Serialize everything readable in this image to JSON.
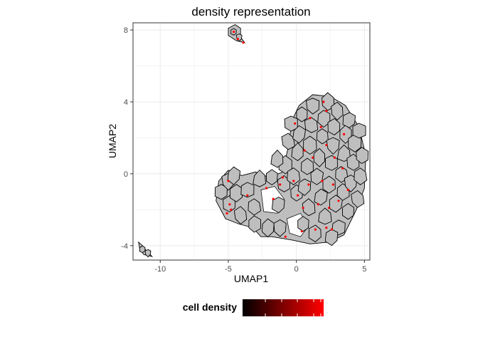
{
  "chart_data": {
    "type": "scatter",
    "title": "density representation",
    "xlabel": "UMAP1",
    "ylabel": "UMAP2",
    "xlim": [
      -12,
      5.4
    ],
    "ylim": [
      -4.8,
      8.4
    ],
    "x_ticks": [
      -10,
      -5,
      0,
      5
    ],
    "y_ticks": [
      -4,
      0,
      4,
      8
    ],
    "x_tick_labels": [
      "-10",
      "-5",
      "0",
      "5"
    ],
    "y_tick_labels": [
      "-4",
      "0",
      "4",
      "8"
    ],
    "grid": true,
    "legend": {
      "title": "cell density",
      "position": "bottom",
      "type": "colorbar",
      "low_color": "#000000",
      "high_color": "#ff0000"
    },
    "colors": {
      "tile_fill": "#bebebe",
      "tile_outline": "#000000",
      "dense_point": "#ff0000",
      "grid": "#ebebeb",
      "panel_border": "#333333"
    },
    "clusters": [
      {
        "name": "main",
        "polygon": [
          [
            -5.7,
            -0.4
          ],
          [
            -5,
            0.2
          ],
          [
            -4,
            -0.1
          ],
          [
            -3,
            0.1
          ],
          [
            -2,
            -0.2
          ],
          [
            -1,
            0.1
          ],
          [
            -0.6,
            1.5
          ],
          [
            -0.3,
            3
          ],
          [
            0.2,
            3.8
          ],
          [
            1.2,
            4.4
          ],
          [
            2.5,
            4.3
          ],
          [
            3.6,
            3.8
          ],
          [
            4.6,
            2.6
          ],
          [
            5.1,
            1
          ],
          [
            5,
            -0.8
          ],
          [
            4.4,
            -2
          ],
          [
            3.5,
            -3.4
          ],
          [
            2.4,
            -3.8
          ],
          [
            1,
            -3.9
          ],
          [
            -0.2,
            -3.7
          ],
          [
            -1,
            -3.6
          ],
          [
            -1.8,
            -3.5
          ],
          [
            -2.6,
            -3.5
          ],
          [
            -3.2,
            -3
          ],
          [
            -4.2,
            -2.8
          ],
          [
            -5.2,
            -2.5
          ],
          [
            -5.9,
            -1.5
          ]
        ]
      },
      {
        "name": "top-islet",
        "polygon": [
          [
            -5,
            8.1
          ],
          [
            -4.5,
            8.3
          ],
          [
            -4.1,
            8.1
          ],
          [
            -4.1,
            7.6
          ],
          [
            -3.8,
            7.3
          ],
          [
            -4.4,
            7.4
          ],
          [
            -5,
            7.7
          ]
        ]
      },
      {
        "name": "bottom-left-islet",
        "polygon": [
          [
            -11.6,
            -3.8
          ],
          [
            -11.3,
            -4
          ],
          [
            -11,
            -4.3
          ],
          [
            -10.6,
            -4.6
          ],
          [
            -11.2,
            -4.5
          ],
          [
            -11.5,
            -4.2
          ]
        ]
      }
    ],
    "holes": [
      {
        "polygon": [
          [
            -2.6,
            -0.9
          ],
          [
            -1.6,
            -0.7
          ],
          [
            -0.9,
            -1.4
          ],
          [
            -1.4,
            -2.2
          ],
          [
            -2.4,
            -2.1
          ]
        ]
      },
      {
        "polygon": [
          [
            -0.7,
            -2.5
          ],
          [
            0.3,
            -2.2
          ],
          [
            0.9,
            -2.9
          ],
          [
            0.3,
            -3.5
          ],
          [
            -0.5,
            -3.3
          ]
        ]
      }
    ],
    "tile_centers": {
      "main": [
        [
          -5.5,
          -1
        ],
        [
          -5,
          -0.4
        ],
        [
          -4.9,
          -1.7
        ],
        [
          -4.4,
          -1.1
        ],
        [
          -4.1,
          -2.3
        ],
        [
          -3.6,
          -0.9
        ],
        [
          -3.1,
          -1.8
        ],
        [
          -3.1,
          -2.8
        ],
        [
          -2.7,
          -0.3
        ],
        [
          -2.1,
          -3
        ],
        [
          -1.8,
          -0.2
        ],
        [
          -1.3,
          -1.7
        ],
        [
          -1.2,
          -3
        ],
        [
          -0.9,
          -0.6
        ],
        [
          -0.8,
          0.5
        ],
        [
          -0.6,
          1.8
        ],
        [
          -0.4,
          2.8
        ],
        [
          -0.2,
          -0.1
        ],
        [
          0,
          -1.1
        ],
        [
          0.1,
          1.2
        ],
        [
          0.2,
          2.2
        ],
        [
          0.4,
          3.3
        ],
        [
          0.6,
          -0.7
        ],
        [
          0.8,
          0.4
        ],
        [
          0.9,
          -1.9
        ],
        [
          1,
          1.6
        ],
        [
          1.1,
          2.7
        ],
        [
          1.2,
          3.8
        ],
        [
          1.4,
          -3.3
        ],
        [
          1.5,
          -0.2
        ],
        [
          1.7,
          0.9
        ],
        [
          1.8,
          -1.3
        ],
        [
          1.9,
          2.1
        ],
        [
          2,
          3.1
        ],
        [
          2.1,
          -2.4
        ],
        [
          2.3,
          4
        ],
        [
          2.4,
          -0.6
        ],
        [
          2.6,
          0.6
        ],
        [
          2.7,
          1.6
        ],
        [
          2.8,
          2.6
        ],
        [
          2.9,
          -1.7
        ],
        [
          3,
          3.5
        ],
        [
          3.1,
          -3
        ],
        [
          3.3,
          0
        ],
        [
          3.4,
          -1
        ],
        [
          3.5,
          1.1
        ],
        [
          3.6,
          2.2
        ],
        [
          3.8,
          -2.1
        ],
        [
          3.9,
          3
        ],
        [
          4,
          -0.5
        ],
        [
          4.2,
          0.6
        ],
        [
          4.3,
          1.7
        ],
        [
          4.5,
          -1.4
        ],
        [
          4.6,
          2.4
        ],
        [
          4.7,
          -0.1
        ],
        [
          4.8,
          1
        ],
        [
          -1.4,
          0.8
        ],
        [
          -4.6,
          -0.1
        ],
        [
          0.5,
          -2.8
        ],
        [
          2.6,
          -3.5
        ]
      ],
      "top-islet": [
        [
          -4.6,
          7.9
        ],
        [
          -4.2,
          7.6
        ]
      ],
      "bottom-left-islet": [
        [
          -11.3,
          -4.2
        ],
        [
          -10.9,
          -4.4
        ]
      ]
    },
    "dense_points": [
      [
        -5,
        -0.4
      ],
      [
        -4.8,
        -2
      ],
      [
        -5.1,
        -2.2
      ],
      [
        -4.9,
        -1.7
      ],
      [
        -3.6,
        -1.2
      ],
      [
        -2.2,
        -0.8
      ],
      [
        -1.7,
        -1.4
      ],
      [
        -1,
        -0.2
      ],
      [
        -0.8,
        -3.5
      ],
      [
        -0.2,
        -0.4
      ],
      [
        0.4,
        -3.2
      ],
      [
        0.5,
        -1.9
      ],
      [
        0.9,
        -0.6
      ],
      [
        1.4,
        -3.1
      ],
      [
        1.6,
        -1.7
      ],
      [
        1.9,
        -0.4
      ],
      [
        2.2,
        -3
      ],
      [
        2.4,
        -1.9
      ],
      [
        2.6,
        -3.1
      ],
      [
        2.2,
        1.6
      ],
      [
        2.7,
        -0.6
      ],
      [
        2.8,
        0.9
      ],
      [
        3.1,
        -1.5
      ],
      [
        3.4,
        0.3
      ],
      [
        3.5,
        2.2
      ],
      [
        3.8,
        -0.9
      ],
      [
        1,
        3.1
      ],
      [
        1.8,
        2.6
      ],
      [
        2.2,
        3.5
      ],
      [
        2,
        4
      ],
      [
        -0.1,
        2.8
      ],
      [
        0.6,
        1.3
      ],
      [
        -4.6,
        7.9
      ],
      [
        -4.3,
        7.5
      ],
      [
        -3.9,
        7.3
      ],
      [
        -1.2,
        -0.6
      ],
      [
        0.1,
        -1.2
      ],
      [
        1.2,
        0.9
      ]
    ]
  }
}
